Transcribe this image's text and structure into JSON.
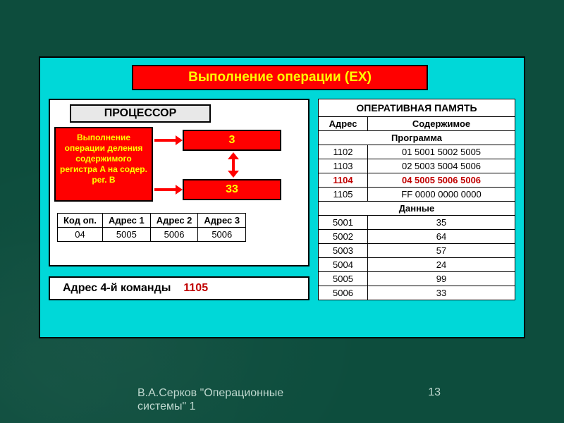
{
  "colors": {
    "slide_bg": "#0d4d3d",
    "panel_bg": "#00d8d8",
    "highlight_bg": "#ff0000",
    "highlight_fg": "#ffff00",
    "white": "#ffffff",
    "accent_text": "#c00000",
    "border": "#000000",
    "footer_fg": "#bfd8cf"
  },
  "title": "Выполнение операции (EX)",
  "processor": {
    "header": "ПРОЦЕССОР",
    "op_desc": "Выполнение операции деления содержимого регистра A на содер. рег. B",
    "reg_a": "3",
    "reg_b": "33",
    "code_table": {
      "headers": [
        "Код оп.",
        "Адрес 1",
        "Адрес 2",
        "Адрес 3"
      ],
      "row": [
        "04",
        "5005",
        "5006",
        "5006"
      ]
    }
  },
  "addr4": {
    "label": "Адрес 4-й команды",
    "value": "1105"
  },
  "memory": {
    "title": "ОПЕРАТИВНАЯ ПАМЯТЬ",
    "headers": [
      "Адрес",
      "Содержимое"
    ],
    "section_prog": "Программа",
    "prog_rows": [
      {
        "addr": "1102",
        "val": "01 5001 5002 5005",
        "hl": false
      },
      {
        "addr": "1103",
        "val": "02 5003 5004 5006",
        "hl": false
      },
      {
        "addr": "1104",
        "val": "04 5005 5006 5006",
        "hl": true
      },
      {
        "addr": "1105",
        "val": "FF 0000 0000 0000",
        "hl": false
      }
    ],
    "section_data": "Данные",
    "data_rows": [
      {
        "addr": "5001",
        "val": "35"
      },
      {
        "addr": "5002",
        "val": "64"
      },
      {
        "addr": "5003",
        "val": "57"
      },
      {
        "addr": "5004",
        "val": "24"
      },
      {
        "addr": "5005",
        "val": "99"
      },
      {
        "addr": "5006",
        "val": "33"
      }
    ]
  },
  "footer": {
    "author": "В.А.Серков \"Операционные системы\" 1",
    "page": "13"
  }
}
